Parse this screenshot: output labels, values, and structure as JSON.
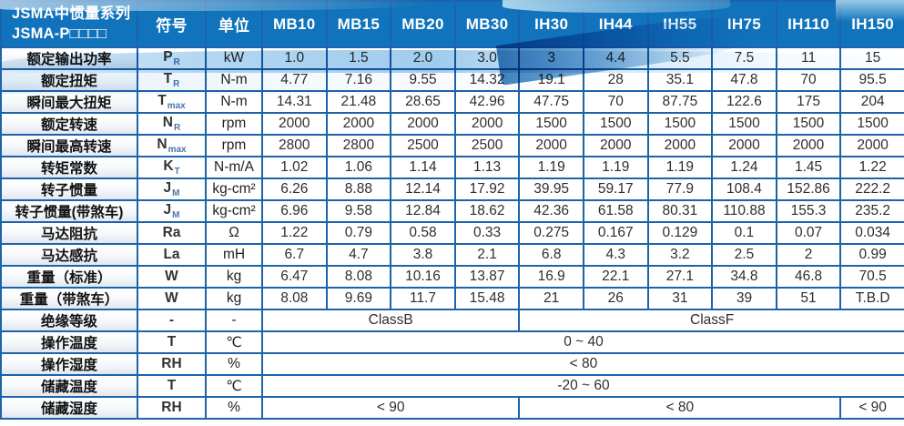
{
  "table": {
    "title_line1": "JSMA中惯量系列",
    "title_line2": "JSMA-P□□□□",
    "sym_header": "符号",
    "unit_header": "单位",
    "models": [
      "MB10",
      "MB15",
      "MB20",
      "MB30",
      "IH30",
      "IH44",
      "IH55",
      "IH75",
      "IH110",
      "IH150"
    ],
    "rows": [
      {
        "label": "额定输出功率",
        "sym": "P",
        "sub": "R",
        "unit": "kW",
        "values": [
          "1.0",
          "1.5",
          "2.0",
          "3.0",
          "3",
          "4.4",
          "5.5",
          "7.5",
          "11",
          "15"
        ]
      },
      {
        "label": "额定扭矩",
        "sym": "T",
        "sub": "R",
        "unit": "N-m",
        "values": [
          "4.77",
          "7.16",
          "9.55",
          "14.32",
          "19.1",
          "28",
          "35.1",
          "47.8",
          "70",
          "95.5"
        ]
      },
      {
        "label": "瞬间最大扭矩",
        "sym": "T",
        "sub": "max",
        "unit": "N-m",
        "values": [
          "14.31",
          "21.48",
          "28.65",
          "42.96",
          "47.75",
          "70",
          "87.75",
          "122.6",
          "175",
          "204"
        ]
      },
      {
        "label": "额定转速",
        "sym": "N",
        "sub": "R",
        "unit": "rpm",
        "values": [
          "2000",
          "2000",
          "2000",
          "2000",
          "1500",
          "1500",
          "1500",
          "1500",
          "1500",
          "1500"
        ]
      },
      {
        "label": "瞬间最高转速",
        "sym": "N",
        "sub": "max",
        "unit": "rpm",
        "values": [
          "2800",
          "2800",
          "2500",
          "2500",
          "2000",
          "2000",
          "2000",
          "2000",
          "2000",
          "2000"
        ]
      },
      {
        "label": "转矩常数",
        "sym": "K",
        "sub": "T",
        "unit": "N-m/A",
        "values": [
          "1.02",
          "1.06",
          "1.14",
          "1.13",
          "1.19",
          "1.19",
          "1.19",
          "1.24",
          "1.45",
          "1.22"
        ]
      },
      {
        "label": "转子惯量",
        "sym": "J",
        "sub": "M",
        "unit": "kg-cm²",
        "values": [
          "6.26",
          "8.88",
          "12.14",
          "17.92",
          "39.95",
          "59.17",
          "77.9",
          "108.4",
          "152.86",
          "222.2"
        ]
      },
      {
        "label": "转子惯量(带煞车)",
        "sym": "J",
        "sub": "M",
        "unit": "kg-cm²",
        "values": [
          "6.96",
          "9.58",
          "12.84",
          "18.62",
          "42.36",
          "61.58",
          "80.31",
          "110.88",
          "155.3",
          "235.2"
        ]
      },
      {
        "label": "马达阻抗",
        "sym": "Ra",
        "sub": "",
        "unit": "Ω",
        "values": [
          "1.22",
          "0.79",
          "0.58",
          "0.33",
          "0.275",
          "0.167",
          "0.129",
          "0.1",
          "0.07",
          "0.034"
        ]
      },
      {
        "label": "马达感抗",
        "sym": "La",
        "sub": "",
        "unit": "mH",
        "values": [
          "6.7",
          "4.7",
          "3.8",
          "2.1",
          "6.8",
          "4.3",
          "3.2",
          "2.5",
          "2",
          "0.99"
        ]
      },
      {
        "label": "重量（标准）",
        "sym": "W",
        "sub": "",
        "unit": "kg",
        "values": [
          "6.47",
          "8.08",
          "10.16",
          "13.87",
          "16.9",
          "22.1",
          "27.1",
          "34.8",
          "46.8",
          "70.5"
        ]
      },
      {
        "label": "重量（带煞车）",
        "sym": "W",
        "sub": "",
        "unit": "kg",
        "values": [
          "8.08",
          "9.69",
          "11.7",
          "15.48",
          "21",
          "26",
          "31",
          "39",
          "51",
          "T.B.D"
        ]
      }
    ],
    "span_rows": [
      {
        "label": "绝缘等级",
        "sym": "-",
        "sub": "",
        "unit": "-",
        "cells": [
          {
            "text": "ClassB",
            "span": 4
          },
          {
            "text": "ClassF",
            "span": 6
          }
        ]
      },
      {
        "label": "操作温度",
        "sym": "T",
        "sub": "",
        "unit": "℃",
        "cells": [
          {
            "text": "0 ~ 40",
            "span": 10
          }
        ]
      },
      {
        "label": "操作湿度",
        "sym": "RH",
        "sub": "",
        "unit": "%",
        "cells": [
          {
            "text": "< 80",
            "span": 10
          }
        ]
      },
      {
        "label": "储藏温度",
        "sym": "T",
        "sub": "",
        "unit": "℃",
        "cells": [
          {
            "text": "-20 ~ 60",
            "span": 10
          }
        ]
      },
      {
        "label": "储藏湿度",
        "sym": "RH",
        "sub": "",
        "unit": "%",
        "cells": [
          {
            "text": "< 90",
            "span": 4
          },
          {
            "text": "< 80",
            "span": 5
          },
          {
            "text": "< 90",
            "span": 1
          }
        ]
      }
    ],
    "colors": {
      "header_bg": "#1173bb",
      "grid_border": "#1d63aa",
      "wave_blue": "#2f81c0",
      "subscript_blue": "#4a76a8"
    }
  }
}
